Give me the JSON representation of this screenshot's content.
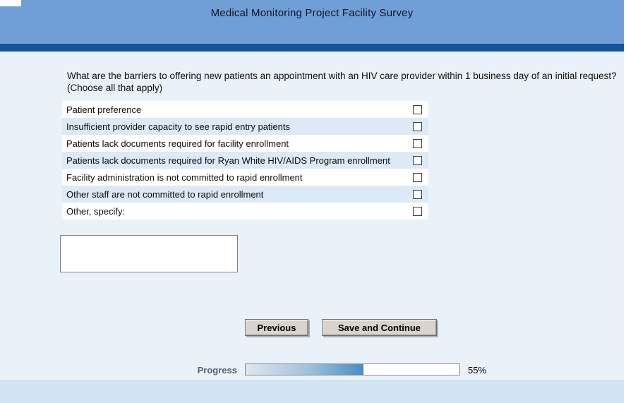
{
  "header": {
    "title": "Medical Monitoring Project Facility Survey"
  },
  "question": {
    "line1": "What are the barriers to offering new patients an appointment with an HIV care provider within 1 business day of an initial request?",
    "line2": "(Choose all that apply)"
  },
  "options": [
    {
      "label": "Patient preference",
      "checked": false
    },
    {
      "label": "Insufficient provider capacity to see rapid entry patients",
      "checked": false
    },
    {
      "label": "Patients lack documents required for facility enrollment",
      "checked": false
    },
    {
      "label": "Patients lack documents required for Ryan White HIV/AIDS Program enrollment",
      "checked": false
    },
    {
      "label": "Facility administration is not committed to rapid enrollment",
      "checked": false
    },
    {
      "label": "Other staff are not committed to rapid enrollment",
      "checked": false
    },
    {
      "label": "Other, specify:",
      "checked": false
    }
  ],
  "other_text": {
    "value": ""
  },
  "buttons": {
    "previous": "Previous",
    "save_and_continue": "Save and Continue"
  },
  "progress": {
    "label": "Progress",
    "percent": 55,
    "percent_label": "55%"
  },
  "colors": {
    "header_blue": "#6f9fd6",
    "stripe_blue": "#16549e",
    "body_bg": "#e9f1f9",
    "row_alt_blue": "#dce9f6",
    "footer_bg": "#d2e5f3",
    "progress_fill_blue": "#4a8cc2"
  }
}
